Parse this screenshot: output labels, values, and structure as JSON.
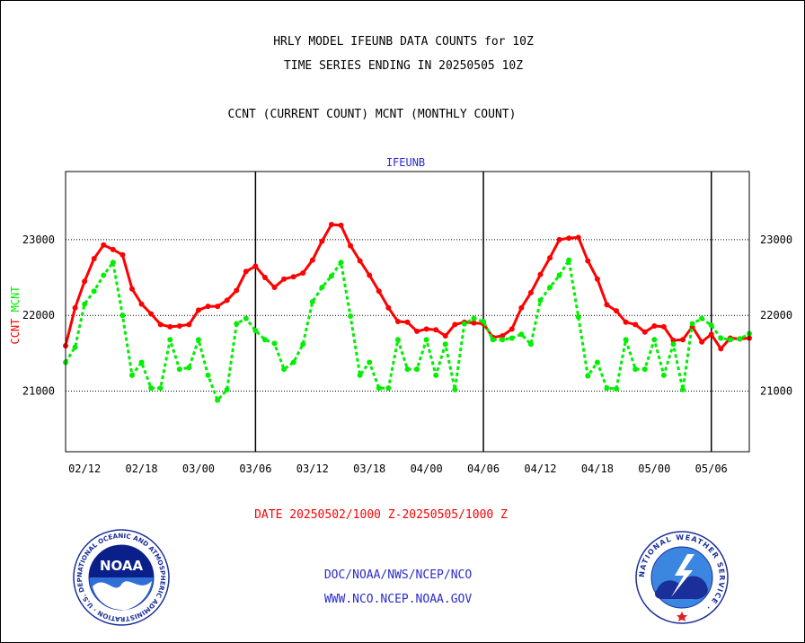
{
  "header": {
    "title_line1": "HRLY MODEL IFEUNB DATA COUNTS for 10Z",
    "title_line2": "TIME SERIES ENDING IN 20250505 10Z",
    "subtitle": "CCNT (CURRENT COUNT) MCNT (MONTHLY COUNT)"
  },
  "footer": {
    "date_range": "DATE 20250502/1000 Z-20250505/1000 Z",
    "org": "DOC/NOAA/NWS/NCEP/NCO",
    "url": "WWW.NCO.NCEP.NOAA.GOV"
  },
  "logos": {
    "noaa_text": "NOAA",
    "noaa_ring": "NATIONAL OCEANIC AND ATMOSPHERIC ADMINISTRATION · U.S. DEPARTMENT OF COMMERCE ·",
    "nws_ring": "NATIONAL WEATHER SERVICE ·"
  },
  "colors": {
    "ccnt": "#ff0000",
    "mcnt": "#00ee00",
    "title": "#000000",
    "panel_label": "#2a2ad0",
    "date_text": "#ff0000"
  },
  "chart_data": {
    "type": "line",
    "title": "IFEUNB",
    "ylabel_parts": [
      {
        "text": "CCNT",
        "color": "#ff0000"
      },
      {
        "text": "MCNT",
        "color": "#00ee00"
      }
    ],
    "ylim": [
      20200,
      23900
    ],
    "yticks": [
      21000,
      22000,
      23000
    ],
    "yticks_right": [
      21000,
      22000,
      23000
    ],
    "xlim": [
      0,
      72
    ],
    "xticks": [
      {
        "x": 2,
        "label": "02/12"
      },
      {
        "x": 8,
        "label": "02/18"
      },
      {
        "x": 14,
        "label": "03/00"
      },
      {
        "x": 20,
        "label": "03/06"
      },
      {
        "x": 26,
        "label": "03/12"
      },
      {
        "x": 32,
        "label": "03/18"
      },
      {
        "x": 38,
        "label": "04/00"
      },
      {
        "x": 44,
        "label": "04/06"
      },
      {
        "x": 50,
        "label": "04/12"
      },
      {
        "x": 56,
        "label": "04/18"
      },
      {
        "x": 62,
        "label": "05/00"
      },
      {
        "x": 68,
        "label": "05/06"
      }
    ],
    "day_boundaries": [
      20,
      44,
      68
    ],
    "grid": "horizontal dotted",
    "series": [
      {
        "name": "CCNT",
        "color": "#ff0000",
        "values": [
          21600,
          22100,
          22450,
          22750,
          22930,
          22870,
          22800,
          22350,
          22150,
          22020,
          21880,
          21850,
          21860,
          21880,
          22070,
          22120,
          22120,
          22200,
          22330,
          22580,
          22650,
          22500,
          22370,
          22480,
          22510,
          22560,
          22730,
          22980,
          23200,
          23190,
          22920,
          22720,
          22530,
          22320,
          22100,
          21920,
          21910,
          21790,
          21820,
          21810,
          21730,
          21880,
          21910,
          21900,
          21890,
          21710,
          21730,
          21820,
          22100,
          22300,
          22540,
          22760,
          23000,
          23020,
          23030,
          22720,
          22480,
          22140,
          22060,
          21910,
          21880,
          21780,
          21860,
          21850,
          21670,
          21680,
          21850,
          21650,
          21750,
          21560,
          21700,
          21690,
          21700
        ]
      },
      {
        "name": "MCNT",
        "color": "#00ee00",
        "values": [
          21380,
          21580,
          22150,
          22320,
          22530,
          22700,
          22000,
          21210,
          21380,
          21040,
          21040,
          21680,
          21290,
          21310,
          21680,
          21210,
          20880,
          21020,
          21890,
          21960,
          21800,
          21680,
          21630,
          21290,
          21380,
          21620,
          22180,
          22370,
          22520,
          22700,
          21990,
          21210,
          21380,
          21040,
          21040,
          21680,
          21290,
          21290,
          21680,
          21210,
          21620,
          21020,
          21890,
          21960,
          21920,
          21680,
          21680,
          21700,
          21750,
          21620,
          22200,
          22370,
          22530,
          22730,
          21980,
          21200,
          21380,
          21040,
          21030,
          21680,
          21290,
          21290,
          21680,
          21210,
          21620,
          21020,
          21890,
          21960,
          21870,
          21700,
          21680,
          21690,
          21760
        ]
      }
    ]
  }
}
